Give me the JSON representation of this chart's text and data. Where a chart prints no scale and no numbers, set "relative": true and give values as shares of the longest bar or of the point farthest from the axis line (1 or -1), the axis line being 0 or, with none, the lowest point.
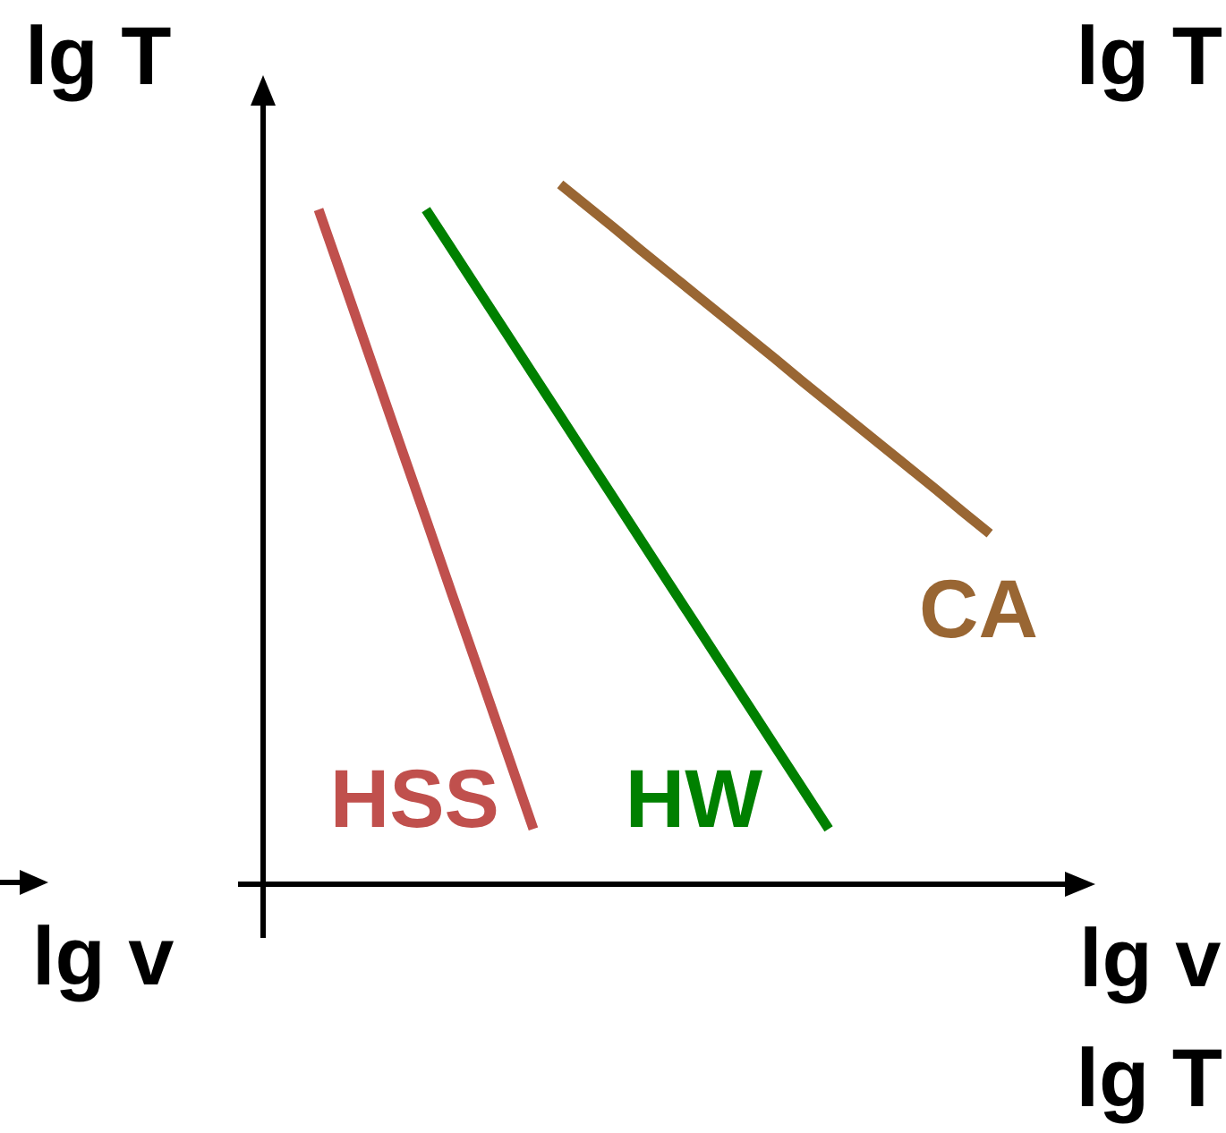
{
  "chart_data": {
    "type": "line",
    "relative": true,
    "ylabel": "lg T",
    "xlabel": "lg v",
    "annotations": [
      "lg T",
      "lg v",
      "lg T"
    ],
    "categories": [
      null,
      null,
      null,
      null,
      null,
      null,
      null,
      null,
      null,
      null,
      null,
      null,
      null,
      null,
      null,
      null,
      null,
      null,
      null,
      null,
      null,
      null,
      null,
      null,
      null,
      null
    ],
    "series": [
      {
        "name": "HSS",
        "color": "#c0504d",
        "values": [
          0.964,
          0.854,
          0.743,
          0.632,
          0.522,
          0.411,
          0.301,
          0.19,
          0.079,
          null,
          null,
          null,
          null,
          null,
          null,
          null,
          null,
          null,
          null,
          null,
          null,
          null,
          null,
          null,
          null,
          null
        ]
      },
      {
        "name": "HW",
        "color": "#008000",
        "values": [
          null,
          null,
          null,
          null,
          0.964,
          0.905,
          0.846,
          0.787,
          0.728,
          0.669,
          0.61,
          0.551,
          0.492,
          0.433,
          0.374,
          0.315,
          0.256,
          0.197,
          0.138,
          0.079,
          null,
          null,
          null,
          null,
          null,
          null
        ]
      },
      {
        "name": "CA",
        "color": "#996633",
        "values": [
          null,
          null,
          null,
          null,
          null,
          null,
          null,
          null,
          null,
          1,
          0.969,
          0.938,
          0.906,
          0.875,
          0.844,
          0.813,
          0.782,
          0.751,
          0.719,
          0.688,
          0.657,
          0.626,
          0.595,
          0.564,
          0.532,
          0.501
        ]
      }
    ]
  }
}
